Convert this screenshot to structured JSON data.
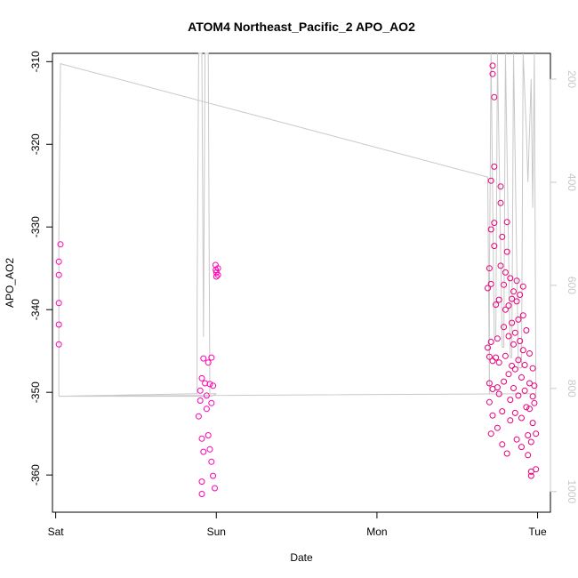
{
  "chart_data": {
    "type": "scatter",
    "title": "ATOM4 Northeast_Pacific_2 APO_AO2",
    "xlabel": "Date",
    "ylabel": "APO_AO2",
    "x_unit": "days since Sat 00:00",
    "xlim": [
      -0.02,
      3.08
    ],
    "ylim": [
      -364.5,
      -309.0
    ],
    "y2lim": [
      1040,
      150
    ],
    "x_ticks": [
      {
        "value": 0,
        "label": "Sat"
      },
      {
        "value": 1,
        "label": "Sun"
      },
      {
        "value": 2,
        "label": "Mon"
      },
      {
        "value": 3,
        "label": "Tue"
      }
    ],
    "y_ticks": [
      {
        "value": -310,
        "label": "-310"
      },
      {
        "value": -320,
        "label": "-320"
      },
      {
        "value": -330,
        "label": "-330"
      },
      {
        "value": -340,
        "label": "-340"
      },
      {
        "value": -350,
        "label": "-350"
      },
      {
        "value": -360,
        "label": "-360"
      }
    ],
    "y2_ticks": [
      {
        "value": 200,
        "label": "200"
      },
      {
        "value": 400,
        "label": "400"
      },
      {
        "value": 600,
        "label": "600"
      },
      {
        "value": 800,
        "label": "800"
      },
      {
        "value": 1000,
        "label": "1000"
      }
    ],
    "grid": false,
    "colors": {
      "points_primary": "#ff00b4",
      "points_secondary": "#e8007a",
      "altitude_line": "#c8c8c8",
      "right_axis_text": "#c8c8c8"
    },
    "series": [
      {
        "role": "APO_AO2 points (magenta)",
        "color": "#ff00b4",
        "points": [
          [
            0.02,
            -334.2
          ],
          [
            0.02,
            -335.8
          ],
          [
            0.02,
            -339.2
          ],
          [
            0.02,
            -341.8
          ],
          [
            0.02,
            -344.2
          ],
          [
            0.03,
            -332.1
          ],
          [
            0.89,
            -352.9
          ],
          [
            0.9,
            -349.8
          ],
          [
            0.9,
            -351.0
          ],
          [
            0.91,
            -348.3
          ],
          [
            0.91,
            -355.6
          ],
          [
            0.92,
            -345.9
          ],
          [
            0.92,
            -357.2
          ],
          [
            0.91,
            -360.8
          ],
          [
            0.91,
            -362.3
          ],
          [
            0.93,
            -348.9
          ],
          [
            0.94,
            -350.4
          ],
          [
            0.94,
            -352.0
          ],
          [
            0.95,
            -346.4
          ],
          [
            0.95,
            -355.2
          ],
          [
            0.96,
            -349.0
          ],
          [
            0.96,
            -356.9
          ],
          [
            0.97,
            -345.8
          ],
          [
            0.97,
            -351.3
          ],
          [
            0.97,
            -358.4
          ],
          [
            0.98,
            -349.2
          ],
          [
            0.98,
            -360.1
          ],
          [
            0.99,
            -361.6
          ],
          [
            0.995,
            -334.6
          ],
          [
            0.997,
            -335.2
          ],
          [
            1.0,
            -335.5
          ],
          [
            1.0,
            -336.0
          ],
          [
            1.01,
            -335.8
          ],
          [
            1.01,
            -335.0
          ]
        ]
      },
      {
        "role": "APO_AO2 points (crimson)",
        "color": "#e8007a",
        "points": [
          [
            2.69,
            -344.6
          ],
          [
            2.69,
            -337.4
          ],
          [
            2.7,
            -345.7
          ],
          [
            2.7,
            -351.2
          ],
          [
            2.7,
            -348.9
          ],
          [
            2.7,
            -335.0
          ],
          [
            2.71,
            -343.9
          ],
          [
            2.71,
            -336.9
          ],
          [
            2.71,
            -330.3
          ],
          [
            2.71,
            -355.0
          ],
          [
            2.71,
            -324.4
          ],
          [
            2.72,
            -352.8
          ],
          [
            2.72,
            -349.6
          ],
          [
            2.72,
            -346.2
          ],
          [
            2.72,
            -310.5
          ],
          [
            2.72,
            -311.5
          ],
          [
            2.73,
            -314.3
          ],
          [
            2.73,
            -322.7
          ],
          [
            2.73,
            -329.5
          ],
          [
            2.73,
            -332.3
          ],
          [
            2.74,
            -339.4
          ],
          [
            2.74,
            -345.8
          ],
          [
            2.75,
            -354.3
          ],
          [
            2.75,
            -349.4
          ],
          [
            2.75,
            -343.5
          ],
          [
            2.76,
            -338.8
          ],
          [
            2.76,
            -350.2
          ],
          [
            2.76,
            -346.4
          ],
          [
            2.77,
            -334.7
          ],
          [
            2.77,
            -325.1
          ],
          [
            2.77,
            -327.1
          ],
          [
            2.78,
            -331.2
          ],
          [
            2.78,
            -356.3
          ],
          [
            2.78,
            -352.3
          ],
          [
            2.79,
            -348.7
          ],
          [
            2.79,
            -342.1
          ],
          [
            2.79,
            -337.0
          ],
          [
            2.8,
            -345.6
          ],
          [
            2.8,
            -340.0
          ],
          [
            2.8,
            -335.5
          ],
          [
            2.81,
            -329.4
          ],
          [
            2.81,
            -333.0
          ],
          [
            2.81,
            -357.4
          ],
          [
            2.82,
            -347.8
          ],
          [
            2.82,
            -343.2
          ],
          [
            2.82,
            -339.5
          ],
          [
            2.83,
            -336.2
          ],
          [
            2.83,
            -353.4
          ],
          [
            2.83,
            -350.9
          ],
          [
            2.84,
            -346.8
          ],
          [
            2.84,
            -341.6
          ],
          [
            2.84,
            -338.7
          ],
          [
            2.85,
            -337.8
          ],
          [
            2.85,
            -344.2
          ],
          [
            2.85,
            -349.5
          ],
          [
            2.86,
            -352.5
          ],
          [
            2.86,
            -347.2
          ],
          [
            2.86,
            -342.8
          ],
          [
            2.87,
            -339.0
          ],
          [
            2.87,
            -336.5
          ],
          [
            2.87,
            -355.7
          ],
          [
            2.88,
            -350.4
          ],
          [
            2.88,
            -346.1
          ],
          [
            2.88,
            -341.2
          ],
          [
            2.89,
            -338.2
          ],
          [
            2.89,
            -343.8
          ],
          [
            2.9,
            -348.2
          ],
          [
            2.9,
            -353.1
          ],
          [
            2.9,
            -356.6
          ],
          [
            2.91,
            -344.9
          ],
          [
            2.91,
            -340.7
          ],
          [
            2.91,
            -337.2
          ],
          [
            2.92,
            -349.8
          ],
          [
            2.92,
            -346.7
          ],
          [
            2.93,
            -342.5
          ],
          [
            2.93,
            -351.8
          ],
          [
            2.94,
            -357.6
          ],
          [
            2.94,
            -355.2
          ],
          [
            2.95,
            -352.0
          ],
          [
            2.95,
            -348.9
          ],
          [
            2.95,
            -345.3
          ],
          [
            2.96,
            -359.6
          ],
          [
            2.96,
            -360.1
          ],
          [
            2.96,
            -356.0
          ],
          [
            2.97,
            -353.7
          ],
          [
            2.97,
            -350.5
          ],
          [
            2.97,
            -347.1
          ],
          [
            2.98,
            -351.3
          ],
          [
            2.98,
            -349.2
          ],
          [
            2.99,
            -355.0
          ],
          [
            2.99,
            -359.3
          ]
        ]
      },
      {
        "role": "altitude trace (grey, right axis)",
        "color": "#c8c8c8",
        "axis": "right",
        "points": [
          [
            0.02,
            815
          ],
          [
            0.02,
            500
          ],
          [
            0.03,
            170
          ],
          [
            2.69,
            390
          ],
          [
            2.7,
            810
          ],
          [
            2.7,
            600
          ],
          [
            2.71,
            150
          ],
          [
            2.73,
            700
          ],
          [
            2.74,
            700
          ],
          [
            2.75,
            150
          ],
          [
            2.78,
            720
          ],
          [
            2.79,
            720
          ],
          [
            2.8,
            150
          ],
          [
            2.83,
            740
          ],
          [
            2.84,
            740
          ],
          [
            2.85,
            150
          ],
          [
            2.88,
            760
          ],
          [
            2.9,
            760
          ],
          [
            2.91,
            150
          ],
          [
            2.93,
            300
          ],
          [
            2.94,
            400
          ],
          [
            2.96,
            200
          ],
          [
            2.97,
            450
          ],
          [
            2.98,
            150
          ],
          [
            2.99,
            820
          ],
          [
            2.99,
            810
          ],
          [
            0.02,
            815
          ],
          [
            0.88,
            810
          ],
          [
            0.88,
            650
          ],
          [
            0.89,
            150
          ],
          [
            0.91,
            150
          ],
          [
            0.92,
            700
          ],
          [
            0.93,
            150
          ],
          [
            0.95,
            150
          ],
          [
            0.96,
            810
          ],
          [
            1.0,
            810
          ],
          [
            0.97,
            815
          ],
          [
            0.02,
            815
          ]
        ]
      }
    ]
  }
}
